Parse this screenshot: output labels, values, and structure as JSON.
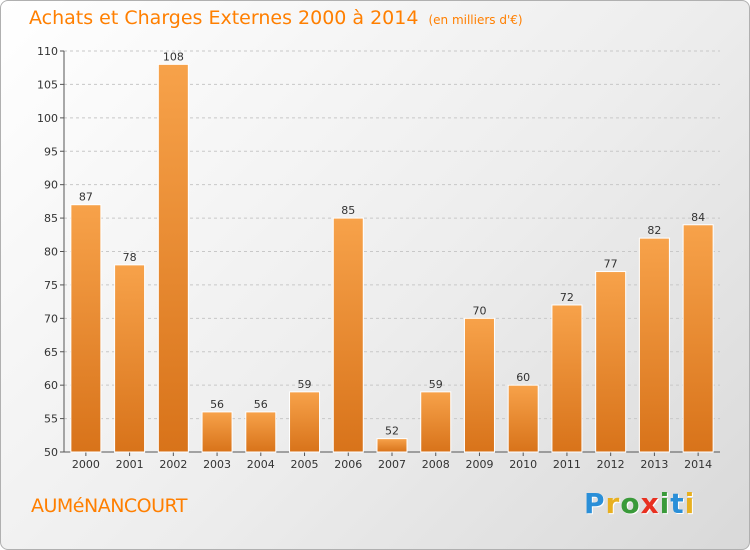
{
  "title": "Achats et Charges Externes 2000 à 2014",
  "unit": "(en milliers d'€)",
  "commune": "AUMéNANCOURT",
  "logo": {
    "letters": [
      "P",
      "r",
      "o",
      "x",
      "i",
      "t",
      "i"
    ],
    "colors": [
      "#2a8fd8",
      "#e8b020",
      "#3a9a3a",
      "#e83020",
      "#3a9a3a",
      "#2a8fd8",
      "#e8b020"
    ]
  },
  "colors": {
    "bar_top": "#f7a24a",
    "bar_bottom": "#d8731a",
    "title": "#ff7f00"
  },
  "chart_data": {
    "type": "bar",
    "categories": [
      "2000",
      "2001",
      "2002",
      "2003",
      "2004",
      "2005",
      "2006",
      "2007",
      "2008",
      "2009",
      "2010",
      "2011",
      "2012",
      "2013",
      "2014"
    ],
    "values": [
      87,
      78,
      108,
      56,
      56,
      59,
      85,
      52,
      59,
      70,
      60,
      72,
      77,
      82,
      84
    ],
    "ylim": [
      50,
      110
    ],
    "yticks": [
      50,
      55,
      60,
      65,
      70,
      75,
      80,
      85,
      90,
      95,
      100,
      105,
      110
    ],
    "grid": true,
    "title": "Achats et Charges Externes 2000 à 2014",
    "xlabel": "",
    "ylabel": ""
  }
}
